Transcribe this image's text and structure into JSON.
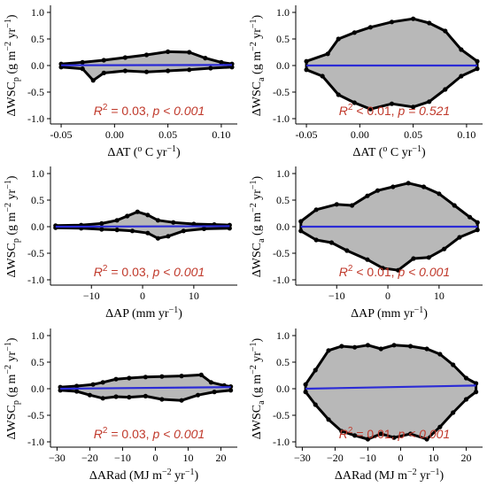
{
  "colors": {
    "cloud_fill": "#b8b8b8",
    "cloud_outline": "#000000",
    "fit_line": "#2b2bd6",
    "stat_text": "#c0392b",
    "axis": "#000000"
  },
  "chart_data": [
    {
      "id": "p1",
      "type": "scatter",
      "column": "left",
      "xlabel_main": "ΔAT (",
      "xlabel_sup": "o",
      "xlabel_mid": " C yr",
      "xlabel_sup2": "−1",
      "xlabel_end": ")",
      "ylabel_main": "ΔWSC",
      "ylabel_sub": "p",
      "ylabel_unit": " (g m",
      "ylabel_sup": "−2",
      "ylabel_unit2": " yr",
      "ylabel_sup2": "−1",
      "ylabel_end": ")",
      "xlim": [
        -0.06,
        0.115
      ],
      "ylim": [
        -1.1,
        1.1
      ],
      "xticks": [
        -0.05,
        0.0,
        0.05,
        0.1
      ],
      "xtick_labels": [
        "-0.05",
        "0.00",
        "0.05",
        "0.10"
      ],
      "yticks": [
        -1.0,
        -0.5,
        0.0,
        0.5,
        1.0
      ],
      "ytick_labels": [
        "-1.0",
        "-0.5",
        "0.0",
        "0.5",
        "1.0"
      ],
      "stat_r2": "0.03",
      "stat_p": "p < 0.001",
      "cloud_upper": [
        [
          -0.05,
          0.03
        ],
        [
          -0.03,
          0.06
        ],
        [
          -0.01,
          0.1
        ],
        [
          0.01,
          0.15
        ],
        [
          0.03,
          0.2
        ],
        [
          0.05,
          0.26
        ],
        [
          0.07,
          0.25
        ],
        [
          0.085,
          0.14
        ],
        [
          0.1,
          0.06
        ],
        [
          0.11,
          0.03
        ]
      ],
      "cloud_lower": [
        [
          -0.05,
          -0.03
        ],
        [
          -0.03,
          -0.06
        ],
        [
          -0.02,
          -0.28
        ],
        [
          -0.01,
          -0.14
        ],
        [
          0.01,
          -0.1
        ],
        [
          0.03,
          -0.12
        ],
        [
          0.05,
          -0.1
        ],
        [
          0.07,
          -0.08
        ],
        [
          0.09,
          -0.05
        ],
        [
          0.11,
          -0.03
        ]
      ],
      "fit": [
        [
          -0.05,
          0.005
        ],
        [
          0.11,
          0.01
        ]
      ]
    },
    {
      "id": "p2",
      "type": "scatter",
      "column": "right",
      "xlabel_main": "ΔAT (",
      "xlabel_sup": "o",
      "xlabel_mid": " C yr",
      "xlabel_sup2": "−1",
      "xlabel_end": ")",
      "ylabel_main": "ΔWSC",
      "ylabel_sub": "a",
      "ylabel_unit": " (g m",
      "ylabel_sup": "−2",
      "ylabel_unit2": " yr",
      "ylabel_sup2": "−1",
      "ylabel_end": ")",
      "xlim": [
        -0.06,
        0.115
      ],
      "ylim": [
        -1.1,
        1.1
      ],
      "xticks": [
        -0.05,
        0.0,
        0.05,
        0.1
      ],
      "xtick_labels": [
        "-0.05",
        "0.00",
        "0.05",
        "0.10"
      ],
      "yticks": [
        -1.0,
        -0.5,
        0.0,
        0.5,
        1.0
      ],
      "ytick_labels": [
        "-1.0",
        "-0.5",
        "0.0",
        "0.5",
        "1.0"
      ],
      "stat_r2": "< 0.01",
      "stat_p": "p = 0.521",
      "cloud_upper": [
        [
          -0.05,
          0.08
        ],
        [
          -0.03,
          0.22
        ],
        [
          -0.02,
          0.5
        ],
        [
          -0.005,
          0.62
        ],
        [
          0.01,
          0.72
        ],
        [
          0.03,
          0.82
        ],
        [
          0.05,
          0.88
        ],
        [
          0.065,
          0.8
        ],
        [
          0.08,
          0.65
        ],
        [
          0.095,
          0.3
        ],
        [
          0.11,
          0.08
        ]
      ],
      "cloud_lower": [
        [
          -0.05,
          -0.08
        ],
        [
          -0.035,
          -0.2
        ],
        [
          -0.02,
          -0.55
        ],
        [
          -0.005,
          -0.7
        ],
        [
          0.01,
          -0.82
        ],
        [
          0.03,
          -0.72
        ],
        [
          0.05,
          -0.78
        ],
        [
          0.065,
          -0.68
        ],
        [
          0.08,
          -0.45
        ],
        [
          0.095,
          -0.2
        ],
        [
          0.11,
          -0.06
        ]
      ],
      "fit": [
        [
          -0.05,
          0.0
        ],
        [
          0.11,
          0.0
        ]
      ]
    },
    {
      "id": "p3",
      "type": "scatter",
      "column": "left",
      "xlabel_main": "ΔAP (mm yr",
      "xlabel_sup": "−1",
      "xlabel_mid": ")",
      "xlabel_sup2": "",
      "xlabel_end": "",
      "ylabel_main": "ΔWSC",
      "ylabel_sub": "p",
      "ylabel_unit": " (g m",
      "ylabel_sup": "−2",
      "ylabel_unit2": " yr",
      "ylabel_sup2": "−1",
      "ylabel_end": ")",
      "xlim": [
        -18,
        18.5
      ],
      "ylim": [
        -1.1,
        1.1
      ],
      "xticks": [
        -10,
        0,
        10
      ],
      "xtick_labels": [
        "−10",
        "0",
        "10"
      ],
      "yticks": [
        -1.0,
        -0.5,
        0.0,
        0.5,
        1.0
      ],
      "ytick_labels": [
        "-1.0",
        "-0.5",
        "0.0",
        "0.5",
        "1.0"
      ],
      "stat_r2": "0.03",
      "stat_p": "p < 0.001",
      "cloud_upper": [
        [
          -17,
          0.02
        ],
        [
          -12,
          0.03
        ],
        [
          -8,
          0.06
        ],
        [
          -5,
          0.12
        ],
        [
          -3,
          0.2
        ],
        [
          -1,
          0.28
        ],
        [
          1,
          0.22
        ],
        [
          3,
          0.12
        ],
        [
          6,
          0.08
        ],
        [
          10,
          0.05
        ],
        [
          14,
          0.04
        ],
        [
          17,
          0.03
        ]
      ],
      "cloud_lower": [
        [
          -17,
          -0.02
        ],
        [
          -12,
          -0.03
        ],
        [
          -8,
          -0.05
        ],
        [
          -5,
          -0.06
        ],
        [
          -2,
          -0.08
        ],
        [
          1,
          -0.12
        ],
        [
          3,
          -0.22
        ],
        [
          5,
          -0.18
        ],
        [
          8,
          -0.08
        ],
        [
          12,
          -0.04
        ],
        [
          17,
          -0.03
        ]
      ],
      "fit": [
        [
          -17,
          0.0
        ],
        [
          17,
          0.01
        ]
      ]
    },
    {
      "id": "p4",
      "type": "scatter",
      "column": "right",
      "xlabel_main": "ΔAP (mm yr",
      "xlabel_sup": "−1",
      "xlabel_mid": ")",
      "xlabel_sup2": "",
      "xlabel_end": "",
      "ylabel_main": "ΔWSC",
      "ylabel_sub": "a",
      "ylabel_unit": " (g m",
      "ylabel_sup": "−2",
      "ylabel_unit2": " yr",
      "ylabel_sup2": "−1",
      "ylabel_end": ")",
      "xlim": [
        -18,
        18.5
      ],
      "ylim": [
        -1.1,
        1.1
      ],
      "xticks": [
        -10,
        0,
        10
      ],
      "xtick_labels": [
        "−10",
        "0",
        "10"
      ],
      "yticks": [
        -1.0,
        -0.5,
        0.0,
        0.5,
        1.0
      ],
      "ytick_labels": [
        "-1.0",
        "-0.5",
        "0.0",
        "0.5",
        "1.0"
      ],
      "stat_r2": "< 0.01",
      "stat_p": "p < 0.001",
      "cloud_upper": [
        [
          -17,
          0.1
        ],
        [
          -14,
          0.32
        ],
        [
          -10,
          0.42
        ],
        [
          -7,
          0.4
        ],
        [
          -4,
          0.58
        ],
        [
          -2,
          0.68
        ],
        [
          1,
          0.75
        ],
        [
          4,
          0.82
        ],
        [
          7,
          0.75
        ],
        [
          10,
          0.62
        ],
        [
          13,
          0.4
        ],
        [
          16,
          0.18
        ],
        [
          17.5,
          0.08
        ]
      ],
      "cloud_lower": [
        [
          -17,
          -0.08
        ],
        [
          -14,
          -0.25
        ],
        [
          -11,
          -0.3
        ],
        [
          -8,
          -0.45
        ],
        [
          -4,
          -0.62
        ],
        [
          -1,
          -0.78
        ],
        [
          2,
          -0.82
        ],
        [
          5,
          -0.6
        ],
        [
          8,
          -0.58
        ],
        [
          11,
          -0.42
        ],
        [
          14,
          -0.2
        ],
        [
          17.5,
          -0.06
        ]
      ],
      "fit": [
        [
          -17,
          0.0
        ],
        [
          17.5,
          0.0
        ]
      ]
    },
    {
      "id": "p5",
      "type": "scatter",
      "column": "left",
      "xlabel_main": "ΔARad (MJ m",
      "xlabel_sup": "−2",
      "xlabel_mid": " yr",
      "xlabel_sup2": "−1",
      "xlabel_end": ")",
      "ylabel_main": "ΔWSC",
      "ylabel_sub": "p",
      "ylabel_unit": " (g m",
      "ylabel_sup": "−2",
      "ylabel_unit2": " yr",
      "ylabel_sup2": "−1",
      "ylabel_end": ")",
      "xlim": [
        -32,
        25
      ],
      "ylim": [
        -1.1,
        1.1
      ],
      "xticks": [
        -30,
        -20,
        -10,
        0,
        10,
        20
      ],
      "xtick_labels": [
        "−30",
        "−20",
        "−10",
        "0",
        "10",
        "20"
      ],
      "yticks": [
        -1.0,
        -0.5,
        0.0,
        0.5,
        1.0
      ],
      "ytick_labels": [
        "-1.0",
        "-0.5",
        "0.0",
        "0.5",
        "1.0"
      ],
      "stat_r2": "0.03",
      "stat_p": "p < 0.001",
      "cloud_upper": [
        [
          -29,
          0.03
        ],
        [
          -24,
          0.05
        ],
        [
          -19,
          0.08
        ],
        [
          -16,
          0.12
        ],
        [
          -12,
          0.18
        ],
        [
          -8,
          0.2
        ],
        [
          -3,
          0.22
        ],
        [
          2,
          0.23
        ],
        [
          8,
          0.24
        ],
        [
          14,
          0.26
        ],
        [
          17,
          0.12
        ],
        [
          21,
          0.06
        ],
        [
          23,
          0.04
        ]
      ],
      "cloud_lower": [
        [
          -29,
          -0.03
        ],
        [
          -24,
          -0.05
        ],
        [
          -20,
          -0.12
        ],
        [
          -16,
          -0.18
        ],
        [
          -12,
          -0.15
        ],
        [
          -8,
          -0.16
        ],
        [
          -3,
          -0.14
        ],
        [
          2,
          -0.2
        ],
        [
          8,
          -0.22
        ],
        [
          13,
          -0.12
        ],
        [
          18,
          -0.06
        ],
        [
          23,
          -0.03
        ]
      ],
      "fit": [
        [
          -29,
          0.0
        ],
        [
          23,
          0.03
        ]
      ]
    },
    {
      "id": "p6",
      "type": "scatter",
      "column": "right",
      "xlabel_main": "ΔARad (MJ m",
      "xlabel_sup": "−2",
      "xlabel_mid": " yr",
      "xlabel_sup2": "−1",
      "xlabel_end": ")",
      "ylabel_main": "ΔWSC",
      "ylabel_sub": "a",
      "ylabel_unit": " (g m",
      "ylabel_sup": "−2",
      "ylabel_unit2": " yr",
      "ylabel_sup2": "−1",
      "ylabel_end": ")",
      "xlim": [
        -32,
        25
      ],
      "ylim": [
        -1.1,
        1.1
      ],
      "xticks": [
        -30,
        -20,
        -10,
        0,
        10,
        20
      ],
      "xtick_labels": [
        "−30",
        "−20",
        "−10",
        "0",
        "10",
        "20"
      ],
      "yticks": [
        -1.0,
        -0.5,
        0.0,
        0.5,
        1.0
      ],
      "ytick_labels": [
        "-1.0",
        "-0.5",
        "0.0",
        "0.5",
        "1.0"
      ],
      "stat_r2": "0.01",
      "stat_p": "p < 0.001",
      "cloud_upper": [
        [
          -29,
          0.08
        ],
        [
          -26,
          0.35
        ],
        [
          -22,
          0.72
        ],
        [
          -18,
          0.8
        ],
        [
          -14,
          0.78
        ],
        [
          -10,
          0.82
        ],
        [
          -6,
          0.75
        ],
        [
          -2,
          0.82
        ],
        [
          3,
          0.8
        ],
        [
          8,
          0.75
        ],
        [
          12,
          0.65
        ],
        [
          16,
          0.45
        ],
        [
          20,
          0.2
        ],
        [
          23,
          0.1
        ]
      ],
      "cloud_lower": [
        [
          -29,
          -0.06
        ],
        [
          -26,
          -0.3
        ],
        [
          -22,
          -0.58
        ],
        [
          -18,
          -0.8
        ],
        [
          -14,
          -0.88
        ],
        [
          -10,
          -0.95
        ],
        [
          -6,
          -0.85
        ],
        [
          -2,
          -0.92
        ],
        [
          3,
          -0.85
        ],
        [
          8,
          -0.95
        ],
        [
          12,
          -0.72
        ],
        [
          16,
          -0.45
        ],
        [
          20,
          -0.2
        ],
        [
          23,
          -0.06
        ]
      ],
      "fit": [
        [
          -29,
          0.0
        ],
        [
          23,
          0.06
        ]
      ]
    }
  ]
}
